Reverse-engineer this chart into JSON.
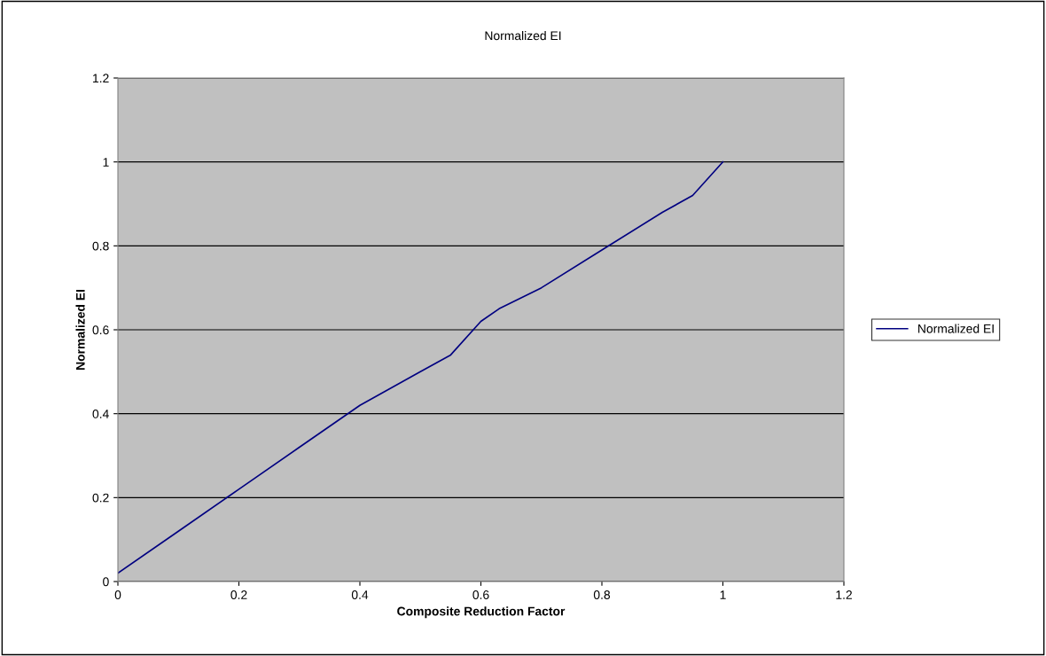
{
  "chart_data": {
    "type": "line",
    "title": "Normalized EI",
    "xlabel": "Composite Reduction Factor",
    "ylabel": "Normalized EI",
    "x": [
      0,
      0.1,
      0.2,
      0.3,
      0.4,
      0.5,
      0.55,
      0.6,
      0.63,
      0.7,
      0.8,
      0.9,
      0.95,
      1.0
    ],
    "series": [
      {
        "name": "Normalized EI",
        "color": "#000080",
        "values": [
          0.02,
          0.12,
          0.22,
          0.32,
          0.42,
          0.5,
          0.54,
          0.62,
          0.65,
          0.7,
          0.79,
          0.88,
          0.92,
          1.0
        ]
      }
    ],
    "xlim": [
      0,
      1.2
    ],
    "xticks": [
      0,
      0.2,
      0.4,
      0.6,
      0.8,
      1,
      1.2
    ],
    "ylim": [
      0,
      1.2
    ],
    "yticks": [
      0,
      0.2,
      0.4,
      0.6,
      0.8,
      1,
      1.2
    ],
    "grid": "y",
    "legend": "right",
    "marker": "none",
    "line_style": "solid"
  }
}
